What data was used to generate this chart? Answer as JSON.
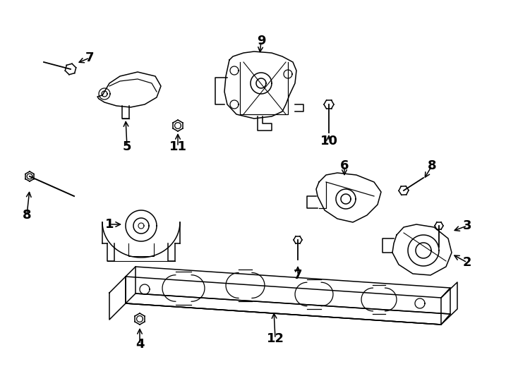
{
  "background_color": "#ffffff",
  "figsize": [
    7.34,
    5.4
  ],
  "dpi": 100
}
